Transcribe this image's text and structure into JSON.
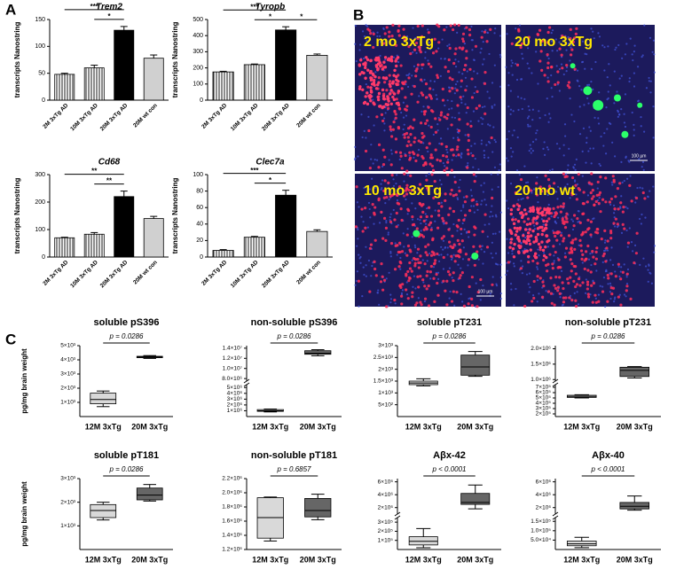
{
  "panel_labels": [
    "A",
    "B",
    "C"
  ],
  "images": [
    {
      "label": "2 mo 3xTg"
    },
    {
      "label": "20 mo 3xTg",
      "scale_bar": "100 µm"
    },
    {
      "label": "10 mo 3xTg",
      "scale_bar": "100 µm"
    },
    {
      "label": "20 mo wt"
    }
  ],
  "chart_data": [
    {
      "type": "bar",
      "title": "Trem2",
      "ylabel": "transcripts Nanostring",
      "categories": [
        "2M 3xTg AD",
        "10M 3xTg AD",
        "20M 3xTg AD",
        "20M wt con"
      ],
      "values": [
        48,
        60,
        130,
        78
      ],
      "errors": [
        2,
        5,
        7,
        6
      ],
      "fills": [
        "vertical-stripes",
        "vertical-stripes",
        "#000000",
        "#d0d0d0"
      ],
      "ylim": [
        0,
        150
      ],
      "yticks": [
        0,
        50,
        100,
        150
      ],
      "annotations": [
        {
          "text": "***",
          "from": 0,
          "to": 2
        },
        {
          "text": "*",
          "from": 1,
          "to": 2
        }
      ]
    },
    {
      "type": "bar",
      "title": "Tyropb",
      "ylabel": "transcripts Nanostring",
      "categories": [
        "2M 3xTg AD",
        "10M 3xTg AD",
        "20M 3xTg AD",
        "20M wt con"
      ],
      "values": [
        175,
        220,
        435,
        278
      ],
      "errors": [
        4,
        4,
        20,
        8
      ],
      "fills": [
        "vertical-stripes",
        "vertical-stripes",
        "#000000",
        "#d0d0d0"
      ],
      "ylim": [
        0,
        500
      ],
      "yticks": [
        0,
        100,
        200,
        300,
        400,
        500
      ],
      "annotations": [
        {
          "text": "***",
          "from": 0,
          "to": 2
        },
        {
          "text": "*",
          "from": 1,
          "to": 2
        },
        {
          "text": "*",
          "from": 2,
          "to": 3
        }
      ]
    },
    {
      "type": "bar",
      "title": "Cd68",
      "ylabel": "transcripts Nanostring",
      "categories": [
        "2M 3xTg AD",
        "10M 3xTg AD",
        "20M 3xTg AD",
        "20M wt con"
      ],
      "values": [
        70,
        83,
        220,
        140
      ],
      "errors": [
        2,
        6,
        20,
        8
      ],
      "fills": [
        "vertical-stripes",
        "vertical-stripes",
        "#000000",
        "#d0d0d0"
      ],
      "ylim": [
        0,
        300
      ],
      "yticks": [
        0,
        100,
        200,
        300
      ],
      "annotations": [
        {
          "text": "**",
          "from": 0,
          "to": 2
        },
        {
          "text": "**",
          "from": 1,
          "to": 2
        }
      ]
    },
    {
      "type": "bar",
      "title": "Clec7a",
      "ylabel": "transcripts Nanostring",
      "categories": [
        "2M 3xTg AD",
        "10M 3xTg AD",
        "20M 3xTg AD",
        "20M wt con"
      ],
      "values": [
        8,
        24,
        75,
        31
      ],
      "errors": [
        1,
        1,
        6,
        2
      ],
      "fills": [
        "vertical-stripes",
        "vertical-stripes",
        "#000000",
        "#d0d0d0"
      ],
      "ylim": [
        0,
        100
      ],
      "yticks": [
        0,
        20,
        40,
        60,
        80,
        100
      ],
      "annotations": [
        {
          "text": "***",
          "from": 0,
          "to": 2
        },
        {
          "text": "*",
          "from": 1,
          "to": 2
        }
      ]
    },
    {
      "type": "box",
      "title": "soluble pS396",
      "ylabel": "pg/mg brain weight",
      "categories": [
        "12M 3xTg",
        "20M 3xTg"
      ],
      "colors": [
        "#d9d9d9",
        "#666666"
      ],
      "boxes": [
        {
          "min": 700,
          "q1": 900,
          "median": 1200,
          "q3": 1650,
          "max": 1800
        },
        {
          "min": 4100,
          "q1": 4150,
          "median": 4200,
          "q3": 4250,
          "max": 4300
        }
      ],
      "ylim": [
        0,
        5000
      ],
      "yticks": [
        {
          "value": 1000,
          "label": "1×10³"
        },
        {
          "value": 2000,
          "label": "2×10³"
        },
        {
          "value": 3000,
          "label": "3×10³"
        },
        {
          "value": 4000,
          "label": "4×10³"
        },
        {
          "value": 5000,
          "label": "5×10³"
        }
      ],
      "annotation": "p = 0.0286"
    },
    {
      "type": "box",
      "title": "non-soluble pS396",
      "categories": [
        "12M 3xTg",
        "20M 3xTg"
      ],
      "colors": [
        "#d9d9d9",
        "#666666"
      ],
      "boxes": [
        {
          "min": 800000,
          "q1": 900000,
          "median": 1000000,
          "q3": 1200000,
          "max": 1300000
        },
        {
          "min": 12500000,
          "q1": 12800000,
          "median": 13000000,
          "q3": 13500000,
          "max": 13700000
        }
      ],
      "ylim": [
        0,
        14500000
      ],
      "ybreak": [
        5500000,
        7500000
      ],
      "yticks": [
        {
          "value": 1000000,
          "label": "1×10⁶"
        },
        {
          "value": 2000000,
          "label": "2×10⁶"
        },
        {
          "value": 3000000,
          "label": "3×10⁶"
        },
        {
          "value": 4000000,
          "label": "4×10⁶"
        },
        {
          "value": 5000000,
          "label": "5×10⁶"
        },
        {
          "value": 8000000,
          "label": "8.0×10⁶"
        },
        {
          "value": 10000000,
          "label": "1.0×10⁷"
        },
        {
          "value": 12000000,
          "label": "1.2×10⁷"
        },
        {
          "value": 14000000,
          "label": "1.4×10⁷"
        }
      ],
      "annotation": "p = 0.0286"
    },
    {
      "type": "box",
      "title": "soluble pT231",
      "categories": [
        "12M 3xTg",
        "20M 3xTg"
      ],
      "colors": [
        "#d9d9d9",
        "#666666"
      ],
      "boxes": [
        {
          "min": 1300,
          "q1": 1350,
          "median": 1420,
          "q3": 1500,
          "max": 1600
        },
        {
          "min": 1700,
          "q1": 1750,
          "median": 2100,
          "q3": 2600,
          "max": 2750
        }
      ],
      "ylim": [
        0,
        3000
      ],
      "yticks": [
        {
          "value": 500,
          "label": "5×10²"
        },
        {
          "value": 1000,
          "label": "1×10³"
        },
        {
          "value": 1500,
          "label": "1.5×10³"
        },
        {
          "value": 2000,
          "label": "2×10³"
        },
        {
          "value": 2500,
          "label": "2.5×10³"
        },
        {
          "value": 3000,
          "label": "3×10³"
        }
      ],
      "annotation": "p = 0.0286"
    },
    {
      "type": "box",
      "title": "non-soluble pT231",
      "categories": [
        "12M 3xTg",
        "20M 3xTg"
      ],
      "colors": [
        "#d9d9d9",
        "#666666"
      ],
      "boxes": [
        {
          "min": 500000,
          "q1": 510000,
          "median": 530000,
          "q3": 550000,
          "max": 560000
        },
        {
          "min": 1050000,
          "q1": 1100000,
          "median": 1300000,
          "q3": 1400000,
          "max": 1420000
        }
      ],
      "ylim": [
        150000,
        2100000
      ],
      "ybreak": [
        750000,
        950000
      ],
      "yticks": [
        {
          "value": 200000,
          "label": "2×10⁵"
        },
        {
          "value": 300000,
          "label": "3×10⁵"
        },
        {
          "value": 400000,
          "label": "4×10⁵"
        },
        {
          "value": 500000,
          "label": "5×10⁵"
        },
        {
          "value": 600000,
          "label": "6×10⁵"
        },
        {
          "value": 700000,
          "label": "7×10⁵"
        },
        {
          "value": 1000000,
          "label": "1.0×10⁶"
        },
        {
          "value": 1500000,
          "label": "1.5×10⁶"
        },
        {
          "value": 2000000,
          "label": "2.0×10⁶"
        }
      ],
      "annotation": "p = 0.0286"
    },
    {
      "type": "box",
      "title": "soluble pT181",
      "ylabel": "pg/mg brain weight",
      "categories": [
        "12M 3xTg",
        "20M 3xTg"
      ],
      "colors": [
        "#d9d9d9",
        "#666666"
      ],
      "boxes": [
        {
          "min": 1250,
          "q1": 1350,
          "median": 1650,
          "q3": 1900,
          "max": 2000
        },
        {
          "min": 2050,
          "q1": 2100,
          "median": 2300,
          "q3": 2600,
          "max": 2750
        }
      ],
      "ylim": [
        0,
        3000
      ],
      "yticks": [
        {
          "value": 1000,
          "label": "1×10³"
        },
        {
          "value": 2000,
          "label": "2×10³"
        },
        {
          "value": 3000,
          "label": "3×10³"
        }
      ],
      "annotation": "p = 0.0286"
    },
    {
      "type": "box",
      "title": "non-soluble pT181",
      "categories": [
        "12M 3xTg",
        "20M 3xTg"
      ],
      "colors": [
        "#d9d9d9",
        "#666666"
      ],
      "boxes": [
        {
          "min": 1320000,
          "q1": 1360000,
          "median": 1650000,
          "q3": 1930000,
          "max": 1940000
        },
        {
          "min": 1620000,
          "q1": 1660000,
          "median": 1750000,
          "q3": 1920000,
          "max": 1980000
        }
      ],
      "ylim": [
        1200000,
        2200000
      ],
      "yticks": [
        {
          "value": 1200000,
          "label": "1.2×10⁶"
        },
        {
          "value": 1400000,
          "label": "1.4×10⁶"
        },
        {
          "value": 1600000,
          "label": "1.6×10⁶"
        },
        {
          "value": 1800000,
          "label": "1.8×10⁶"
        },
        {
          "value": 2000000,
          "label": "2.0×10⁶"
        },
        {
          "value": 2200000,
          "label": "2.2×10⁶"
        }
      ],
      "annotation": "p = 0.6857"
    },
    {
      "type": "box",
      "title": "Aβx-42",
      "categories": [
        "12M 3xTg",
        "20M 3xTg"
      ],
      "colors": [
        "#d9d9d9",
        "#666666"
      ],
      "boxes": [
        {
          "min": 20000,
          "q1": 50000,
          "median": 90000,
          "q3": 140000,
          "max": 230000
        },
        {
          "min": 1800000,
          "q1": 2500000,
          "median": 2800000,
          "q3": 4200000,
          "max": 5500000
        }
      ],
      "ylim": [
        0,
        6500000
      ],
      "ybreak": [
        350000,
        1000000
      ],
      "yticks": [
        {
          "value": 100000,
          "label": "1×10⁵"
        },
        {
          "value": 200000,
          "label": "2×10⁵"
        },
        {
          "value": 300000,
          "label": "3×10⁵"
        },
        {
          "value": 2000000,
          "label": "2×10⁶"
        },
        {
          "value": 4000000,
          "label": "4×10⁶"
        },
        {
          "value": 6000000,
          "label": "6×10⁶"
        }
      ],
      "annotation": "p < 0.0001"
    },
    {
      "type": "box",
      "title": "Aβx-40",
      "categories": [
        "12M 3xTg",
        "20M 3xTg"
      ],
      "colors": [
        "#d9d9d9",
        "#666666"
      ],
      "boxes": [
        {
          "min": 10000,
          "q1": 20000,
          "median": 30000,
          "q3": 45000,
          "max": 65000
        },
        {
          "min": 1600000,
          "q1": 1800000,
          "median": 2200000,
          "q3": 2800000,
          "max": 3800000
        }
      ],
      "ylim": [
        0,
        6500000
      ],
      "ybreak": [
        170000,
        1000000
      ],
      "yticks": [
        {
          "value": 50000,
          "label": "5.0×10⁴"
        },
        {
          "value": 100000,
          "label": "1.0×10⁵"
        },
        {
          "value": 150000,
          "label": "1.5×10⁵"
        },
        {
          "value": 2000000,
          "label": "2×10⁶"
        },
        {
          "value": 4000000,
          "label": "4×10⁶"
        },
        {
          "value": 6000000,
          "label": "6×10⁶"
        }
      ],
      "annotation": "p < 0.0001"
    }
  ]
}
